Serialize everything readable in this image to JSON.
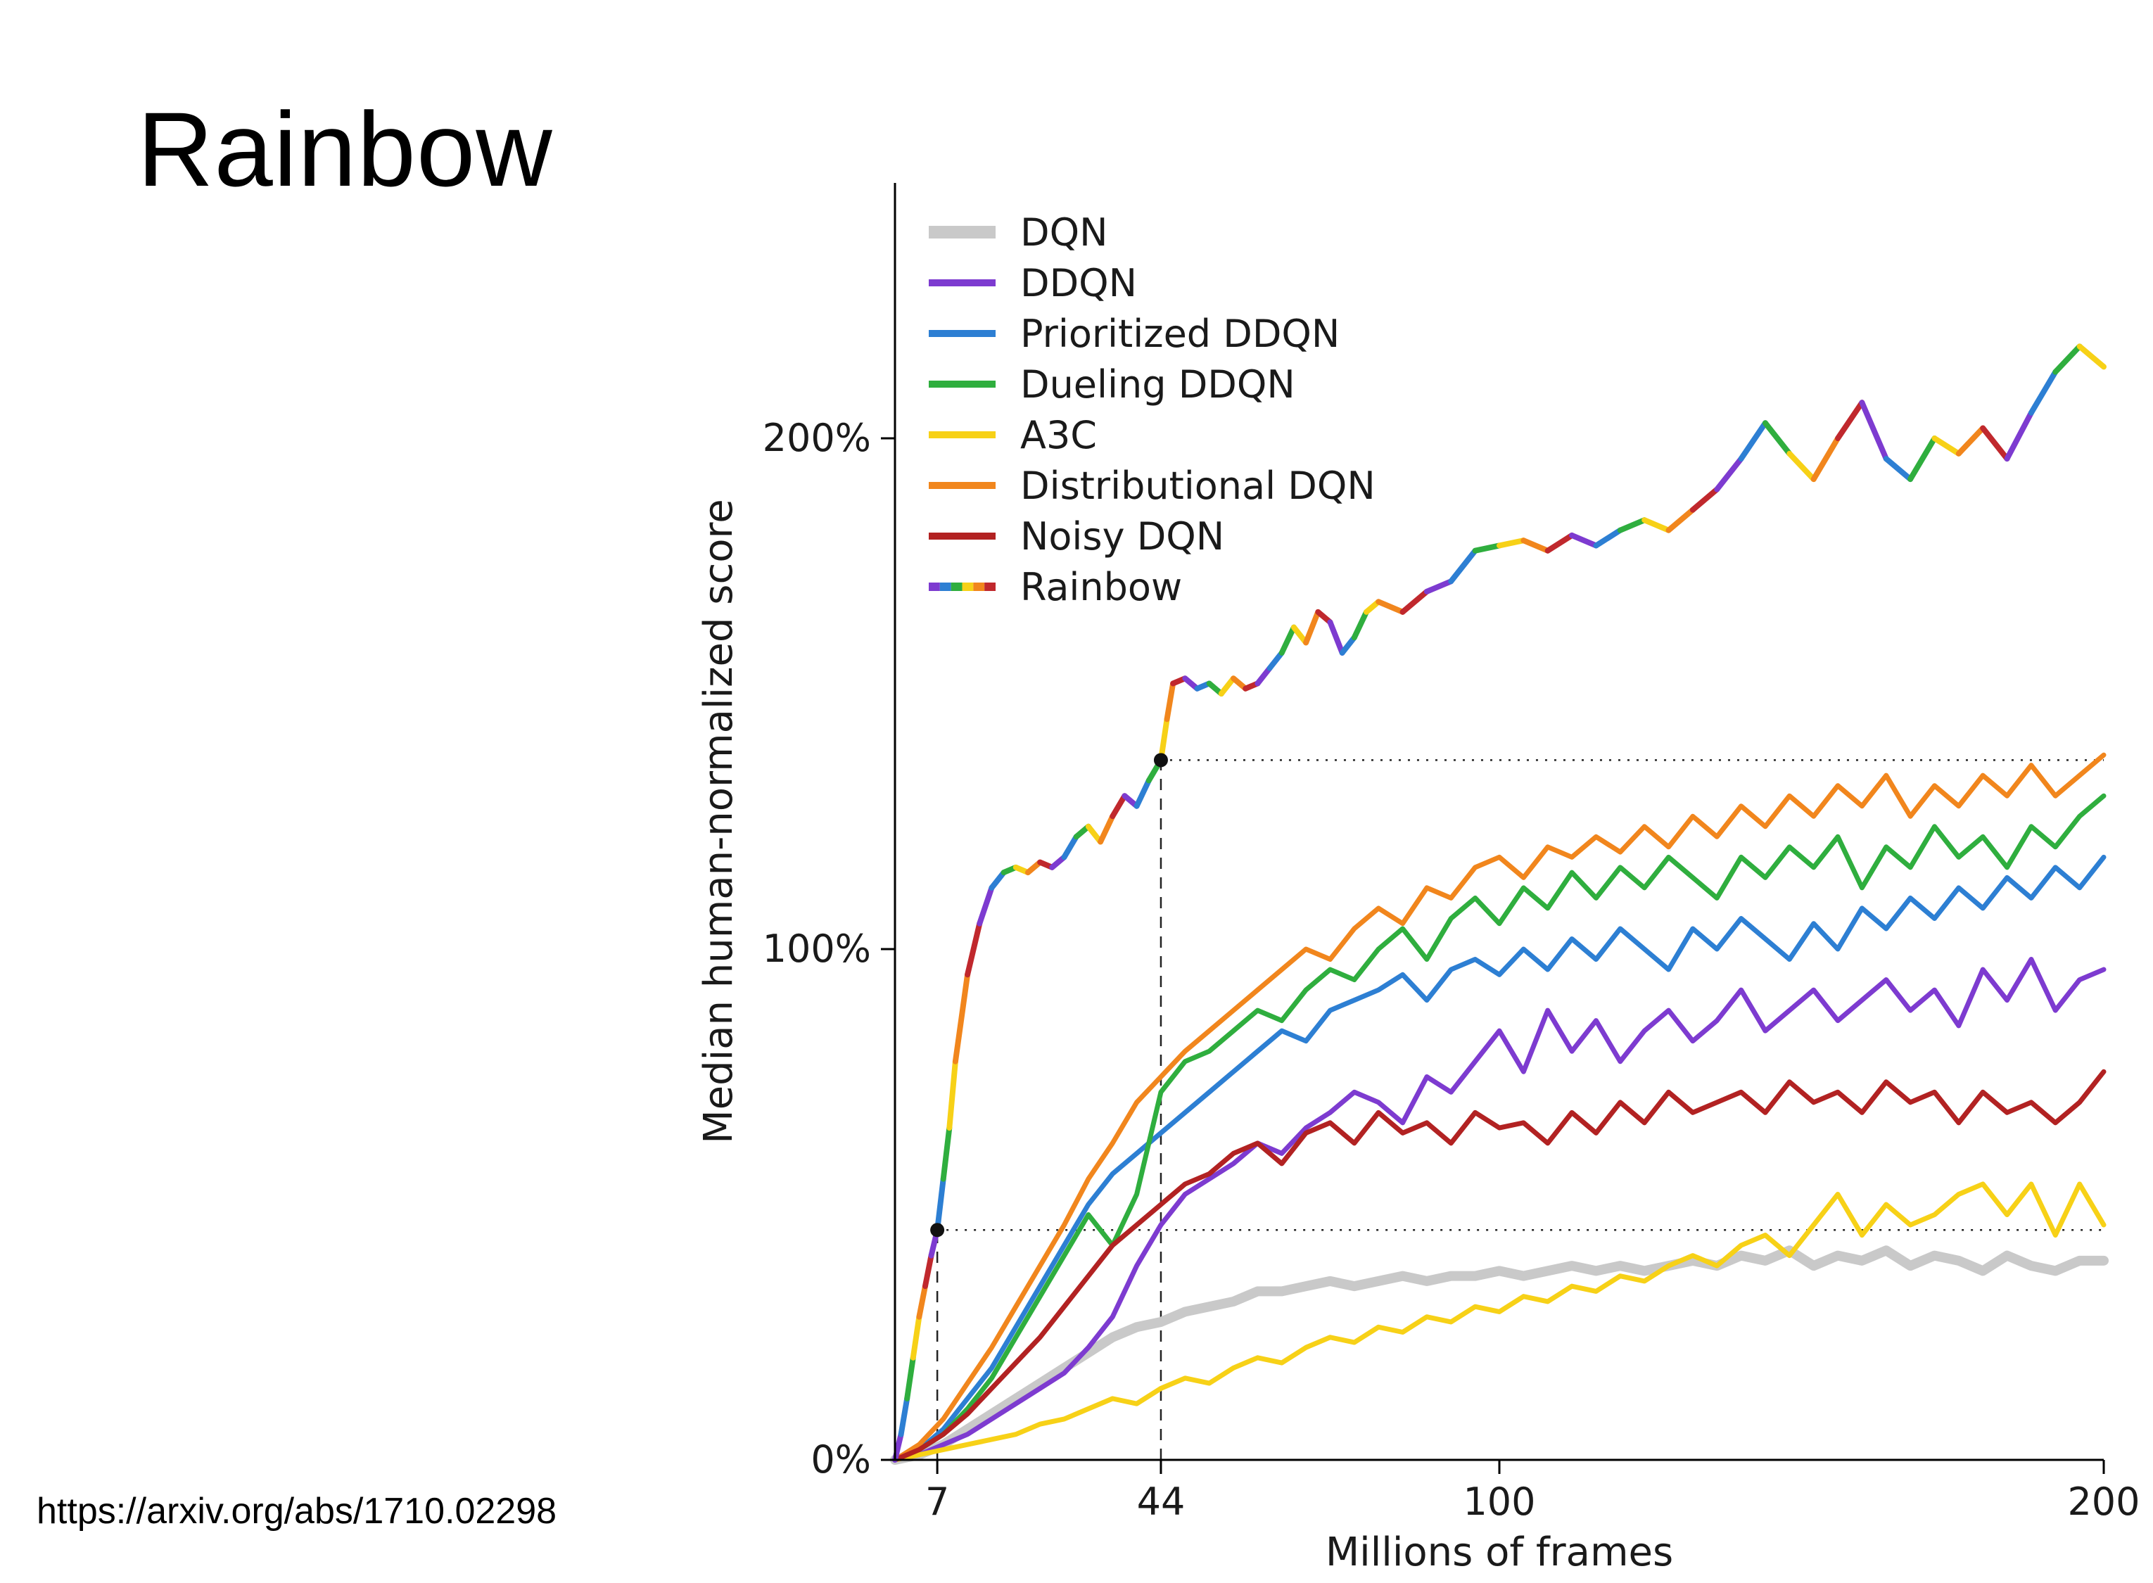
{
  "slide": {
    "title": "Rainbow",
    "link": "https://arxiv.org/abs/1710.02298"
  },
  "chart_data": {
    "type": "line",
    "title": "",
    "xlabel": "Millions of frames",
    "ylabel": "Median human-normalized score",
    "xlim": [
      0,
      200
    ],
    "ylim": [
      0,
      250
    ],
    "xticks": [
      7,
      44,
      100,
      200
    ],
    "yticks": [
      {
        "value": 0,
        "label": "0%"
      },
      {
        "value": 100,
        "label": "100%"
      },
      {
        "value": 200,
        "label": "200%"
      }
    ],
    "grid": false,
    "legend_position": "top-left",
    "rainbow_palette": [
      "#7d3bd0",
      "#2d7fd3",
      "#2fae3e",
      "#f7d117",
      "#f1861d",
      "#c0282d"
    ],
    "x": [
      0,
      4,
      8,
      12,
      16,
      20,
      24,
      28,
      32,
      36,
      40,
      44,
      48,
      52,
      56,
      60,
      64,
      68,
      72,
      76,
      80,
      84,
      88,
      92,
      96,
      100,
      104,
      108,
      112,
      116,
      120,
      124,
      128,
      132,
      136,
      140,
      144,
      148,
      152,
      156,
      160,
      164,
      168,
      172,
      176,
      180,
      184,
      188,
      192,
      196,
      200
    ],
    "series": [
      {
        "name": "DQN",
        "color": "#c9c9c9",
        "width": 14,
        "y": [
          0,
          1,
          3,
          6,
          9,
          12,
          15,
          18,
          21,
          24,
          26,
          27,
          29,
          30,
          31,
          33,
          33,
          34,
          35,
          34,
          35,
          36,
          35,
          36,
          36,
          37,
          36,
          37,
          38,
          37,
          38,
          37,
          38,
          39,
          38,
          40,
          39,
          41,
          38,
          40,
          39,
          41,
          38,
          40,
          39,
          37,
          40,
          38,
          37,
          39,
          39
        ]
      },
      {
        "name": "DDQN",
        "color": "#7d3bd0",
        "width": 7,
        "y": [
          0,
          1,
          3,
          5,
          8,
          11,
          14,
          17,
          22,
          28,
          38,
          46,
          52,
          55,
          58,
          62,
          60,
          65,
          68,
          72,
          70,
          66,
          75,
          72,
          78,
          84,
          76,
          88,
          80,
          86,
          78,
          84,
          88,
          82,
          86,
          92,
          84,
          88,
          92,
          86,
          90,
          94,
          88,
          92,
          85,
          96,
          90,
          98,
          88,
          94,
          96
        ]
      },
      {
        "name": "Prioritized DDQN",
        "color": "#2d7fd3",
        "width": 7,
        "y": [
          0,
          2,
          6,
          12,
          18,
          26,
          34,
          42,
          50,
          56,
          60,
          64,
          68,
          72,
          76,
          80,
          84,
          82,
          88,
          90,
          92,
          95,
          90,
          96,
          98,
          95,
          100,
          96,
          102,
          98,
          104,
          100,
          96,
          104,
          100,
          106,
          102,
          98,
          105,
          100,
          108,
          104,
          110,
          106,
          112,
          108,
          114,
          110,
          116,
          112,
          118
        ]
      },
      {
        "name": "Dueling DDQN",
        "color": "#2fae3e",
        "width": 7,
        "y": [
          0,
          2,
          5,
          10,
          16,
          24,
          32,
          40,
          48,
          42,
          52,
          72,
          78,
          80,
          84,
          88,
          86,
          92,
          96,
          94,
          100,
          104,
          98,
          106,
          110,
          105,
          112,
          108,
          115,
          110,
          116,
          112,
          118,
          114,
          110,
          118,
          114,
          120,
          116,
          122,
          112,
          120,
          116,
          124,
          118,
          122,
          116,
          124,
          120,
          126,
          130
        ]
      },
      {
        "name": "A3C",
        "color": "#f7d117",
        "width": 7,
        "y": [
          0,
          1,
          2,
          3,
          4,
          5,
          7,
          8,
          10,
          12,
          11,
          14,
          16,
          15,
          18,
          20,
          19,
          22,
          24,
          23,
          26,
          25,
          28,
          27,
          30,
          29,
          32,
          31,
          34,
          33,
          36,
          35,
          38,
          40,
          38,
          42,
          44,
          40,
          46,
          52,
          44,
          50,
          46,
          48,
          52,
          54,
          48,
          54,
          44,
          54,
          46
        ]
      },
      {
        "name": "Distributional DQN",
        "color": "#f1861d",
        "width": 7,
        "y": [
          0,
          3,
          8,
          15,
          22,
          30,
          38,
          46,
          55,
          62,
          70,
          75,
          80,
          84,
          88,
          92,
          96,
          100,
          98,
          104,
          108,
          105,
          112,
          110,
          116,
          118,
          114,
          120,
          118,
          122,
          119,
          124,
          120,
          126,
          122,
          128,
          124,
          130,
          126,
          132,
          128,
          134,
          126,
          132,
          128,
          134,
          130,
          136,
          130,
          134,
          138
        ]
      },
      {
        "name": "Noisy DQN",
        "color": "#b22222",
        "width": 7,
        "y": [
          0,
          2,
          5,
          9,
          14,
          19,
          24,
          30,
          36,
          42,
          46,
          50,
          54,
          56,
          60,
          62,
          58,
          64,
          66,
          62,
          68,
          64,
          66,
          62,
          68,
          65,
          66,
          62,
          68,
          64,
          70,
          66,
          72,
          68,
          70,
          72,
          68,
          74,
          70,
          72,
          68,
          74,
          70,
          72,
          66,
          72,
          68,
          70,
          66,
          70,
          76
        ]
      },
      {
        "name": "Rainbow",
        "color": "rainbow",
        "width": 8,
        "rainbow": true,
        "x": [
          0,
          1,
          2,
          3,
          4,
          5,
          6,
          7,
          8,
          9,
          10,
          12,
          14,
          16,
          18,
          20,
          22,
          24,
          26,
          28,
          30,
          32,
          34,
          36,
          38,
          40,
          42,
          44,
          45,
          46,
          48,
          50,
          52,
          54,
          56,
          58,
          60,
          62,
          64,
          66,
          68,
          70,
          72,
          74,
          76,
          78,
          80,
          84,
          88,
          92,
          96,
          100,
          104,
          108,
          112,
          116,
          120,
          124,
          128,
          132,
          136,
          140,
          144,
          148,
          152,
          156,
          160,
          164,
          168,
          172,
          176,
          180,
          184,
          188,
          192,
          196,
          200
        ],
        "y": [
          0,
          5,
          12,
          20,
          28,
          34,
          40,
          45,
          55,
          65,
          78,
          95,
          105,
          112,
          115,
          116,
          115,
          117,
          116,
          118,
          122,
          124,
          121,
          126,
          130,
          128,
          133,
          137,
          145,
          152,
          153,
          151,
          152,
          150,
          153,
          151,
          152,
          155,
          158,
          163,
          160,
          166,
          164,
          158,
          161,
          166,
          168,
          166,
          170,
          172,
          178,
          179,
          180,
          178,
          181,
          179,
          182,
          184,
          182,
          186,
          190,
          196,
          203,
          197,
          192,
          200,
          207,
          196,
          192,
          200,
          197,
          202,
          196,
          205,
          213,
          218,
          214
        ]
      }
    ],
    "annotations": {
      "dots": [
        [
          7,
          45
        ],
        [
          44,
          137
        ]
      ],
      "vlines": [
        {
          "x": 7,
          "y0": 0,
          "y1": 45
        },
        {
          "x": 44,
          "y0": 0,
          "y1": 137
        }
      ],
      "hlines": [
        {
          "y": 45,
          "x0": 7,
          "x1": 200
        },
        {
          "y": 137,
          "x0": 44,
          "x1": 200
        }
      ]
    }
  }
}
